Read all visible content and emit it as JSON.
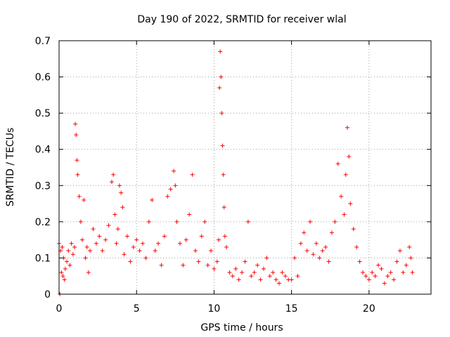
{
  "chart_data": {
    "type": "scatter",
    "title": "Day 190 of 2022, SRMTID for receiver wlal",
    "xlabel": "GPS time / hours",
    "ylabel": "SRMTID / TECUs",
    "xlim": [
      0,
      24
    ],
    "ylim": [
      0,
      0.7
    ],
    "xticks": [
      0,
      5,
      10,
      15,
      20
    ],
    "yticks": [
      0,
      0.1,
      0.2,
      0.3,
      0.4,
      0.5,
      0.6,
      0.7
    ],
    "ytick_labels": [
      "0",
      "0.1",
      "0.2",
      "0.3",
      "0.4",
      "0.5",
      "0.6",
      "0.7"
    ],
    "grid": true,
    "marker": "+",
    "color": "#ff0000",
    "series": [
      {
        "name": "SRMTID",
        "x": [
          0.0,
          0.05,
          0.1,
          0.15,
          0.2,
          0.25,
          0.3,
          0.35,
          0.4,
          0.5,
          0.6,
          0.7,
          0.8,
          0.9,
          1.0,
          1.05,
          1.1,
          1.15,
          1.2,
          1.3,
          1.4,
          1.5,
          1.6,
          1.7,
          1.8,
          1.9,
          2.0,
          2.2,
          2.4,
          2.6,
          2.8,
          3.0,
          3.2,
          3.4,
          3.5,
          3.6,
          3.7,
          3.8,
          3.9,
          4.0,
          4.1,
          4.2,
          4.4,
          4.6,
          4.8,
          5.0,
          5.2,
          5.4,
          5.6,
          5.8,
          6.0,
          6.2,
          6.4,
          6.6,
          6.8,
          7.0,
          7.2,
          7.4,
          7.5,
          7.6,
          7.8,
          8.0,
          8.2,
          8.4,
          8.6,
          8.8,
          9.0,
          9.2,
          9.4,
          9.6,
          9.8,
          10.0,
          10.2,
          10.3,
          10.35,
          10.4,
          10.45,
          10.5,
          10.55,
          10.6,
          10.65,
          10.7,
          10.8,
          11.0,
          11.2,
          11.4,
          11.6,
          11.8,
          12.0,
          12.2,
          12.4,
          12.6,
          12.8,
          13.0,
          13.2,
          13.4,
          13.6,
          13.8,
          14.0,
          14.2,
          14.4,
          14.6,
          14.8,
          15.0,
          15.2,
          15.4,
          15.6,
          15.8,
          16.0,
          16.2,
          16.4,
          16.6,
          16.8,
          17.0,
          17.2,
          17.4,
          17.6,
          17.8,
          18.0,
          18.2,
          18.4,
          18.5,
          18.6,
          18.7,
          18.8,
          19.0,
          19.2,
          19.4,
          19.6,
          19.8,
          20.0,
          20.2,
          20.4,
          20.6,
          20.8,
          21.0,
          21.2,
          21.4,
          21.6,
          21.8,
          22.0,
          22.2,
          22.4,
          22.6,
          22.7,
          22.8
        ],
        "y": [
          0.14,
          0.0,
          0.12,
          0.06,
          0.13,
          0.05,
          0.1,
          0.04,
          0.07,
          0.09,
          0.12,
          0.08,
          0.14,
          0.11,
          0.13,
          0.47,
          0.44,
          0.37,
          0.33,
          0.27,
          0.2,
          0.15,
          0.26,
          0.1,
          0.13,
          0.06,
          0.12,
          0.18,
          0.14,
          0.16,
          0.12,
          0.15,
          0.19,
          0.31,
          0.33,
          0.22,
          0.14,
          0.18,
          0.3,
          0.28,
          0.24,
          0.11,
          0.16,
          0.09,
          0.13,
          0.15,
          0.12,
          0.14,
          0.1,
          0.2,
          0.26,
          0.12,
          0.14,
          0.08,
          0.16,
          0.27,
          0.29,
          0.34,
          0.3,
          0.2,
          0.14,
          0.08,
          0.15,
          0.22,
          0.33,
          0.12,
          0.09,
          0.16,
          0.2,
          0.08,
          0.12,
          0.07,
          0.09,
          0.15,
          0.57,
          0.67,
          0.6,
          0.5,
          0.41,
          0.33,
          0.24,
          0.16,
          0.13,
          0.06,
          0.05,
          0.07,
          0.04,
          0.06,
          0.09,
          0.2,
          0.05,
          0.06,
          0.08,
          0.04,
          0.07,
          0.1,
          0.05,
          0.06,
          0.04,
          0.03,
          0.06,
          0.05,
          0.04,
          0.04,
          0.1,
          0.05,
          0.14,
          0.17,
          0.12,
          0.2,
          0.11,
          0.14,
          0.1,
          0.12,
          0.13,
          0.09,
          0.17,
          0.2,
          0.36,
          0.27,
          0.22,
          0.33,
          0.46,
          0.38,
          0.25,
          0.18,
          0.13,
          0.09,
          0.06,
          0.05,
          0.04,
          0.06,
          0.05,
          0.08,
          0.07,
          0.03,
          0.05,
          0.06,
          0.04,
          0.09,
          0.12,
          0.06,
          0.08,
          0.13,
          0.1,
          0.06
        ]
      }
    ]
  }
}
